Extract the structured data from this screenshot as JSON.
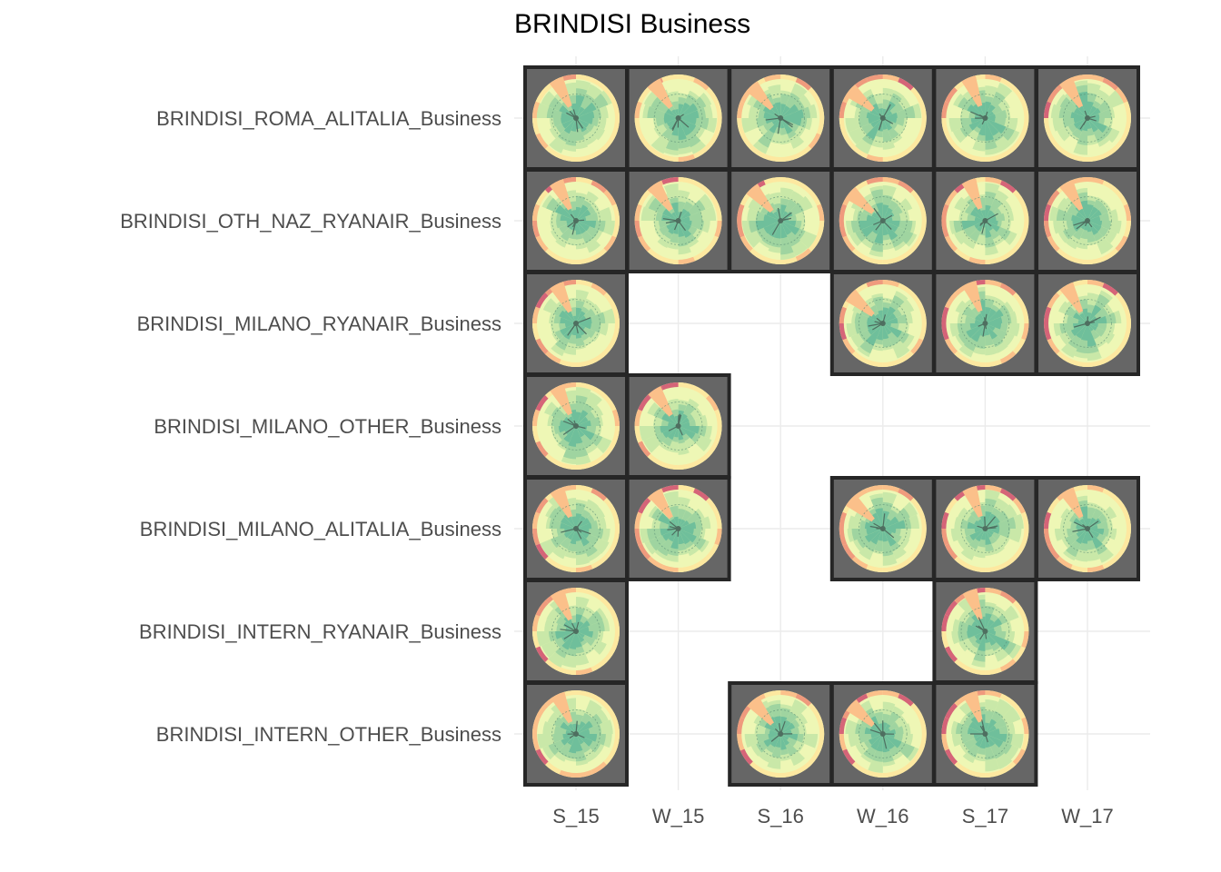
{
  "chart_data": {
    "type": "heatmap",
    "title": "BRINDISI Business",
    "xlabel": "",
    "ylabel": "",
    "x_categories": [
      "S_15",
      "W_15",
      "S_16",
      "W_16",
      "S_17",
      "W_17"
    ],
    "y_categories": [
      "BRINDISI_ROMA_ALITALIA_Business",
      "BRINDISI_OTH_NAZ_RYANAIR_Business",
      "BRINDISI_MILANO_RYANAIR_Business",
      "BRINDISI_MILANO_OTHER_Business",
      "BRINDISI_MILANO_ALITALIA_Business",
      "BRINDISI_INTERN_RYANAIR_Business",
      "BRINDISI_INTERN_OTHER_Business"
    ],
    "cells": [
      {
        "y": "BRINDISI_ROMA_ALITALIA_Business",
        "present": [
          "S_15",
          "W_15",
          "S_16",
          "W_16",
          "S_17",
          "W_17"
        ]
      },
      {
        "y": "BRINDISI_OTH_NAZ_RYANAIR_Business",
        "present": [
          "S_15",
          "W_15",
          "S_16",
          "W_16",
          "S_17",
          "W_17"
        ]
      },
      {
        "y": "BRINDISI_MILANO_RYANAIR_Business",
        "present": [
          "S_15",
          "W_16",
          "S_17",
          "W_17"
        ]
      },
      {
        "y": "BRINDISI_MILANO_OTHER_Business",
        "present": [
          "S_15",
          "W_15"
        ]
      },
      {
        "y": "BRINDISI_MILANO_ALITALIA_Business",
        "present": [
          "S_15",
          "W_15",
          "W_16",
          "S_17",
          "W_17"
        ]
      },
      {
        "y": "BRINDISI_INTERN_RYANAIR_Business",
        "present": [
          "S_15",
          "S_17"
        ]
      },
      {
        "y": "BRINDISI_INTERN_OTHER_Business",
        "present": [
          "S_15",
          "S_16",
          "W_16",
          "S_17"
        ]
      }
    ],
    "grid": true,
    "legend": "none",
    "colors": {
      "tile": "#666666",
      "tile_border": "#262626",
      "glyph_scale": [
        "#5e4fa2",
        "#66c2a5",
        "#abdda4",
        "#e6f598",
        "#fee08b",
        "#fdae61",
        "#f46d43",
        "#d53e4f",
        "#9e0142"
      ]
    }
  }
}
